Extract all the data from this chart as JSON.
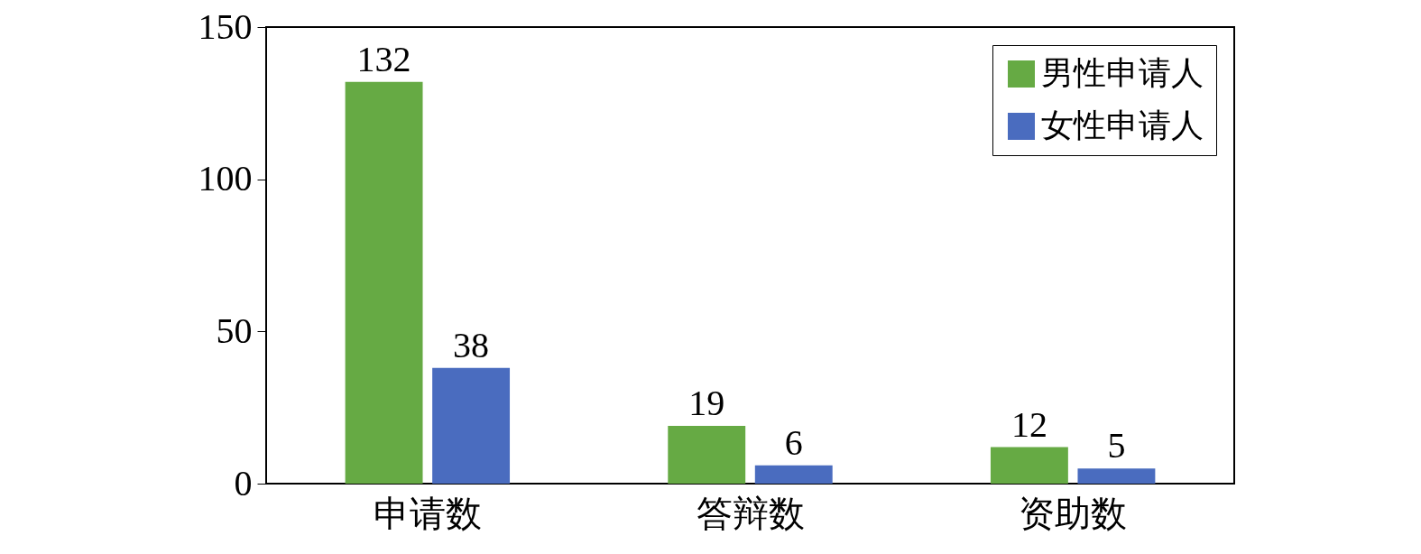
{
  "chart_data": {
    "type": "bar",
    "categories": [
      "申请数",
      "答辩数",
      "资助数"
    ],
    "series": [
      {
        "name": "男性申请人",
        "color": "#66aa44",
        "values": [
          132,
          19,
          12
        ]
      },
      {
        "name": "女性申请人",
        "color": "#4a6cbf",
        "values": [
          38,
          6,
          5
        ]
      }
    ],
    "ylim": [
      0,
      150
    ],
    "yticks": [
      0,
      50,
      100,
      150
    ],
    "grid": false,
    "legend": "top right",
    "data_labels": true
  }
}
